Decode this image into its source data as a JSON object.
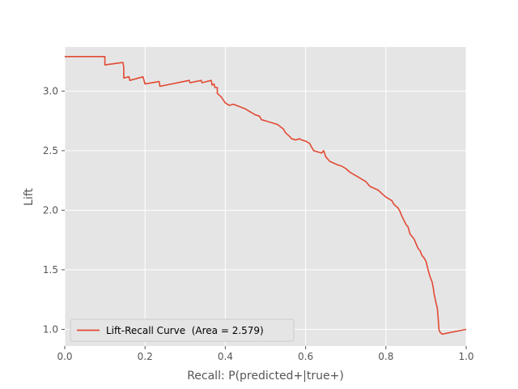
{
  "chart_data": {
    "type": "line",
    "title": "",
    "xlabel": "Recall: P(predicted+|true+)",
    "ylabel": "Lift",
    "xlim": [
      0.0,
      1.0
    ],
    "ylim": [
      0.86,
      3.37
    ],
    "xticks": [
      0.0,
      0.2,
      0.4,
      0.6,
      0.8,
      1.0
    ],
    "xtick_labels": [
      "0.0",
      "0.2",
      "0.4",
      "0.6",
      "0.8",
      "1.0"
    ],
    "yticks": [
      1.0,
      1.5,
      2.0,
      2.5,
      3.0
    ],
    "ytick_labels": [
      "1.0",
      "1.5",
      "2.0",
      "2.5",
      "3.0"
    ],
    "grid": true,
    "legend_position": "lower-left",
    "colors": {
      "line": "#E24A33",
      "plot_bg": "#E5E5E5",
      "grid": "#FFFFFF"
    },
    "series": [
      {
        "name": "Lift-Recall Curve  (Area = 2.579)",
        "x": [
          0.0,
          0.1,
          0.1,
          0.145,
          0.147,
          0.147,
          0.16,
          0.162,
          0.195,
          0.2,
          0.235,
          0.237,
          0.31,
          0.312,
          0.34,
          0.342,
          0.365,
          0.367,
          0.372,
          0.374,
          0.38,
          0.38,
          0.39,
          0.4,
          0.41,
          0.42,
          0.435,
          0.45,
          0.46,
          0.475,
          0.485,
          0.49,
          0.5,
          0.51,
          0.52,
          0.53,
          0.545,
          0.55,
          0.56,
          0.565,
          0.575,
          0.585,
          0.59,
          0.6,
          0.61,
          0.615,
          0.62,
          0.63,
          0.64,
          0.645,
          0.65,
          0.655,
          0.66,
          0.68,
          0.69,
          0.7,
          0.71,
          0.72,
          0.73,
          0.74,
          0.75,
          0.76,
          0.78,
          0.79,
          0.8,
          0.81,
          0.815,
          0.82,
          0.83,
          0.835,
          0.84,
          0.85,
          0.855,
          0.86,
          0.87,
          0.875,
          0.88,
          0.885,
          0.89,
          0.895,
          0.9,
          0.905,
          0.91,
          0.915,
          0.918,
          0.92,
          0.925,
          0.928,
          0.93,
          0.932,
          0.934,
          0.94,
          1.0
        ],
        "y": [
          3.29,
          3.29,
          3.22,
          3.24,
          3.2,
          3.11,
          3.12,
          3.09,
          3.12,
          3.06,
          3.08,
          3.04,
          3.09,
          3.07,
          3.09,
          3.07,
          3.09,
          3.05,
          3.06,
          3.03,
          3.03,
          2.98,
          2.95,
          2.9,
          2.88,
          2.89,
          2.87,
          2.85,
          2.83,
          2.8,
          2.79,
          2.76,
          2.75,
          2.74,
          2.73,
          2.72,
          2.68,
          2.65,
          2.62,
          2.6,
          2.59,
          2.6,
          2.59,
          2.58,
          2.56,
          2.53,
          2.5,
          2.49,
          2.48,
          2.5,
          2.45,
          2.43,
          2.41,
          2.38,
          2.37,
          2.35,
          2.32,
          2.3,
          2.28,
          2.26,
          2.24,
          2.2,
          2.17,
          2.14,
          2.11,
          2.09,
          2.08,
          2.05,
          2.02,
          1.99,
          1.95,
          1.88,
          1.86,
          1.8,
          1.76,
          1.72,
          1.68,
          1.66,
          1.62,
          1.6,
          1.57,
          1.5,
          1.44,
          1.4,
          1.35,
          1.3,
          1.22,
          1.18,
          1.1,
          1.0,
          0.98,
          0.96,
          1.0
        ]
      }
    ]
  }
}
